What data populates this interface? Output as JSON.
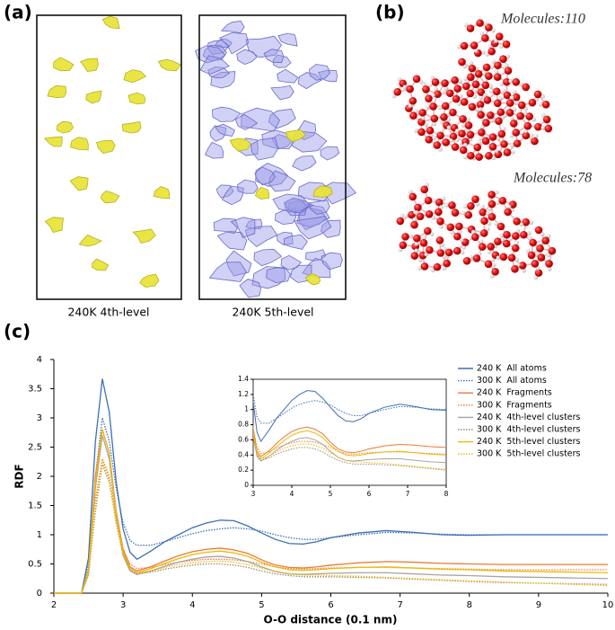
{
  "panel_labels": [
    "(a)",
    "(b)",
    "(c)"
  ],
  "panel_a": {
    "captions": [
      "240K 4th-level",
      "240K 5th-level"
    ]
  },
  "panel_b": {
    "labels": [
      "Molecules:110",
      "Molecules:78"
    ]
  },
  "chart_data": [
    {
      "type": "line",
      "xlabel": "O-O distance (0.1 nm)",
      "ylabel": "RDF",
      "xlim": [
        2,
        10
      ],
      "ylim": [
        0,
        4
      ],
      "xticks": [
        2,
        3,
        4,
        5,
        6,
        7,
        8,
        9,
        10
      ],
      "yticks": [
        0,
        0.5,
        1,
        1.5,
        2,
        2.5,
        3,
        3.5,
        4
      ],
      "grid": false,
      "legend": "upper right",
      "x": [
        2,
        2.4,
        2.5,
        2.6,
        2.7,
        2.8,
        2.9,
        3.0,
        3.1,
        3.2,
        3.4,
        3.6,
        3.8,
        4.0,
        4.2,
        4.4,
        4.6,
        4.8,
        5.0,
        5.2,
        5.4,
        5.6,
        5.8,
        6.0,
        6.4,
        6.8,
        7.2,
        7.6,
        8.0,
        8.5,
        9.0,
        9.5,
        10
      ],
      "series": [
        {
          "name": "240 K  All atoms",
          "color": "#3d6fb6",
          "style": "solid",
          "values": [
            0,
            0,
            0.6,
            2.6,
            3.67,
            3.1,
            1.9,
            1.1,
            0.7,
            0.58,
            0.72,
            0.88,
            1.0,
            1.12,
            1.2,
            1.25,
            1.24,
            1.15,
            1.03,
            0.92,
            0.85,
            0.84,
            0.88,
            0.95,
            1.03,
            1.07,
            1.04,
            1.0,
            0.99,
            1.0,
            1.0,
            1.0,
            1.0
          ]
        },
        {
          "name": "300 K  All atoms",
          "color": "#3d6fb6",
          "style": "dotted",
          "values": [
            0,
            0,
            0.5,
            2.0,
            3.0,
            2.6,
            1.8,
            1.2,
            0.9,
            0.82,
            0.82,
            0.88,
            0.95,
            1.02,
            1.07,
            1.1,
            1.12,
            1.1,
            1.06,
            1.0,
            0.95,
            0.92,
            0.92,
            0.95,
            1.0,
            1.04,
            1.03,
            1.01,
            1.0,
            1.0,
            1.0,
            1.0,
            1.0
          ]
        },
        {
          "name": "240 K  Fragments",
          "color": "#ec7a32",
          "style": "solid",
          "values": [
            0,
            0,
            0.4,
            2.0,
            2.8,
            2.4,
            1.4,
            0.75,
            0.45,
            0.38,
            0.45,
            0.55,
            0.64,
            0.71,
            0.75,
            0.77,
            0.74,
            0.68,
            0.57,
            0.48,
            0.44,
            0.43,
            0.45,
            0.48,
            0.52,
            0.54,
            0.53,
            0.51,
            0.5,
            0.49,
            0.49,
            0.49,
            0.49
          ]
        },
        {
          "name": "300 K  Fragments",
          "color": "#ec7a32",
          "style": "dotted",
          "values": [
            0,
            0,
            0.35,
            1.6,
            2.3,
            2.0,
            1.3,
            0.75,
            0.5,
            0.42,
            0.44,
            0.49,
            0.53,
            0.56,
            0.58,
            0.58,
            0.57,
            0.54,
            0.5,
            0.45,
            0.42,
            0.41,
            0.42,
            0.43,
            0.44,
            0.44,
            0.43,
            0.42,
            0.41,
            0.4,
            0.4,
            0.4,
            0.4
          ]
        },
        {
          "name": "240 K  4th-level clusters",
          "color": "#a5a5a5",
          "style": "solid",
          "values": [
            0,
            0,
            0.35,
            1.8,
            2.7,
            2.3,
            1.3,
            0.65,
            0.38,
            0.32,
            0.38,
            0.46,
            0.53,
            0.58,
            0.62,
            0.63,
            0.6,
            0.54,
            0.45,
            0.37,
            0.33,
            0.32,
            0.33,
            0.34,
            0.35,
            0.35,
            0.33,
            0.31,
            0.3,
            0.28,
            0.27,
            0.26,
            0.25
          ]
        },
        {
          "name": "300 K  4th-level clusters",
          "color": "#9c8a6a",
          "style": "dotted",
          "values": [
            0,
            0,
            0.3,
            1.4,
            2.2,
            1.9,
            1.2,
            0.65,
            0.4,
            0.33,
            0.36,
            0.41,
            0.45,
            0.48,
            0.5,
            0.5,
            0.48,
            0.44,
            0.38,
            0.33,
            0.3,
            0.28,
            0.28,
            0.28,
            0.27,
            0.26,
            0.24,
            0.22,
            0.2,
            0.18,
            0.17,
            0.16,
            0.15
          ]
        },
        {
          "name": "240 K  5th-level clusters",
          "color": "#f2b705",
          "style": "solid",
          "values": [
            0,
            0,
            0.4,
            1.9,
            2.8,
            2.4,
            1.35,
            0.7,
            0.42,
            0.35,
            0.42,
            0.51,
            0.59,
            0.66,
            0.7,
            0.72,
            0.69,
            0.63,
            0.53,
            0.45,
            0.4,
            0.39,
            0.4,
            0.42,
            0.44,
            0.45,
            0.43,
            0.41,
            0.4,
            0.38,
            0.37,
            0.36,
            0.35
          ]
        },
        {
          "name": "300 K  5th-level clusters",
          "color": "#f2b705",
          "style": "dotted",
          "values": [
            0,
            0,
            0.33,
            1.5,
            2.25,
            1.95,
            1.2,
            0.68,
            0.42,
            0.35,
            0.38,
            0.44,
            0.49,
            0.52,
            0.54,
            0.55,
            0.53,
            0.49,
            0.43,
            0.37,
            0.33,
            0.31,
            0.31,
            0.3,
            0.29,
            0.27,
            0.25,
            0.23,
            0.21,
            0.19,
            0.17,
            0.15,
            0.13
          ]
        }
      ]
    },
    {
      "type": "inset",
      "xlim": [
        3,
        8
      ],
      "ylim": [
        0,
        1.4
      ],
      "xticks": [
        3,
        4,
        5,
        6,
        7,
        8
      ],
      "yticks": [
        0,
        0.2,
        0.4,
        0.6,
        0.8,
        1,
        1.2,
        1.4
      ]
    }
  ]
}
